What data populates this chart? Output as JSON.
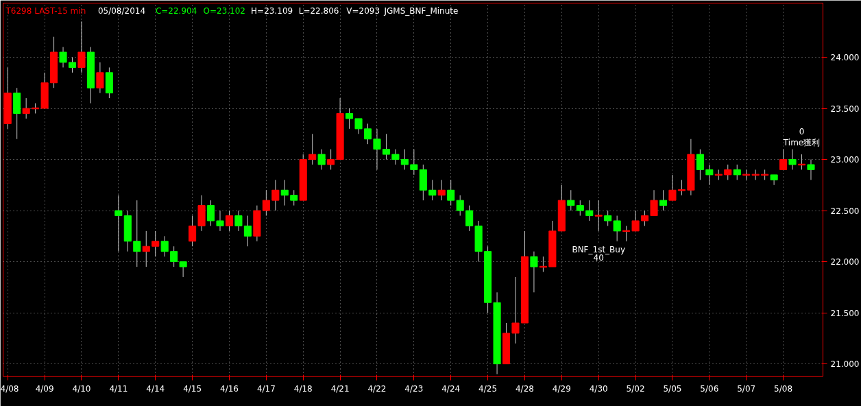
{
  "chart_data": {
    "type": "candlestick",
    "title": "T6298 LAST-15 min",
    "annotations": [
      "05/08/2014",
      "C=22.904",
      "O=23.102",
      "H=23.109",
      "L=22.806",
      "V=2093",
      "JGMS_BNF_Minute",
      "BNF_1st_Buy",
      "40",
      "0",
      "Time獲利"
    ],
    "categories": [
      "4/08",
      null,
      null,
      null,
      "4/09",
      null,
      null,
      null,
      "4/10",
      null,
      null,
      null,
      "4/11",
      null,
      null,
      null,
      "4/14",
      null,
      null,
      null,
      "4/15",
      null,
      null,
      null,
      "4/16",
      null,
      null,
      null,
      "4/17",
      null,
      null,
      null,
      "4/18",
      null,
      null,
      null,
      "4/21",
      null,
      null,
      null,
      "4/22",
      null,
      null,
      null,
      "4/23",
      null,
      null,
      null,
      "4/24",
      null,
      null,
      null,
      "4/25",
      null,
      null,
      null,
      "4/28",
      null,
      null,
      null,
      "4/29",
      null,
      null,
      null,
      "4/30",
      null,
      null,
      null,
      "5/02",
      null,
      null,
      null,
      "5/05",
      null,
      null,
      null,
      "5/06",
      null,
      null,
      null,
      "5/07",
      null,
      null,
      null,
      "5/08",
      null,
      null,
      null
    ],
    "ohlc": [
      [
        23350,
        23900,
        23300,
        23650
      ],
      [
        23650,
        23700,
        23200,
        23450
      ],
      [
        23450,
        23600,
        23400,
        23500
      ],
      [
        23500,
        23550,
        23450,
        23500
      ],
      [
        23500,
        23850,
        23500,
        23750
      ],
      [
        23750,
        24200,
        23700,
        24050
      ],
      [
        24050,
        24100,
        23900,
        23950
      ],
      [
        23950,
        24000,
        23850,
        23900
      ],
      [
        23900,
        24350,
        23850,
        24050
      ],
      [
        24050,
        24100,
        23550,
        23700
      ],
      [
        23700,
        23950,
        23650,
        23850
      ],
      [
        23850,
        23900,
        23600,
        23650
      ],
      [
        22500,
        22650,
        22100,
        22450
      ],
      [
        22450,
        22500,
        22100,
        22200
      ],
      [
        22200,
        22600,
        21950,
        22100
      ],
      [
        22100,
        22300,
        21950,
        22150
      ],
      [
        22150,
        22300,
        22050,
        22200
      ],
      [
        22200,
        22250,
        22050,
        22100
      ],
      [
        22100,
        22150,
        21950,
        22000
      ],
      [
        22000,
        22000,
        21850,
        21950
      ],
      [
        22200,
        22450,
        22150,
        22350
      ],
      [
        22350,
        22650,
        22300,
        22550
      ],
      [
        22550,
        22600,
        22350,
        22400
      ],
      [
        22400,
        22500,
        22300,
        22350
      ],
      [
        22350,
        22500,
        22300,
        22450
      ],
      [
        22450,
        22500,
        22300,
        22350
      ],
      [
        22350,
        22450,
        22150,
        22250
      ],
      [
        22250,
        22550,
        22200,
        22500
      ],
      [
        22500,
        22700,
        22450,
        22600
      ],
      [
        22600,
        22800,
        22500,
        22700
      ],
      [
        22700,
        22800,
        22550,
        22650
      ],
      [
        22650,
        22700,
        22550,
        22600
      ],
      [
        22600,
        23050,
        22600,
        23000
      ],
      [
        23000,
        23250,
        22950,
        23050
      ],
      [
        23050,
        23100,
        22900,
        22950
      ],
      [
        22950,
        23100,
        22900,
        23000
      ],
      [
        23000,
        23600,
        23000,
        23450
      ],
      [
        23450,
        23500,
        23300,
        23400
      ],
      [
        23400,
        23400,
        23250,
        23300
      ],
      [
        23300,
        23350,
        23150,
        23200
      ],
      [
        23200,
        23300,
        22900,
        23100
      ],
      [
        23100,
        23250,
        23000,
        23050
      ],
      [
        23050,
        23100,
        22950,
        23000
      ],
      [
        23000,
        23100,
        22900,
        22950
      ],
      [
        22950,
        23100,
        22850,
        22900
      ],
      [
        22900,
        22950,
        22600,
        22700
      ],
      [
        22700,
        22800,
        22600,
        22650
      ],
      [
        22650,
        22800,
        22600,
        22700
      ],
      [
        22700,
        22800,
        22550,
        22600
      ],
      [
        22600,
        22650,
        22450,
        22500
      ],
      [
        22500,
        22550,
        22300,
        22350
      ],
      [
        22350,
        22400,
        22000,
        22100
      ],
      [
        22100,
        22150,
        21500,
        21600
      ],
      [
        21600,
        21700,
        20900,
        21000
      ],
      [
        21000,
        21400,
        21000,
        21300
      ],
      [
        21300,
        21850,
        21200,
        21400
      ],
      [
        21400,
        22300,
        21400,
        22050
      ],
      [
        22050,
        22100,
        21700,
        21950
      ],
      [
        21950,
        22050,
        21900,
        21950
      ],
      [
        21950,
        22400,
        21950,
        22300
      ],
      [
        22300,
        22750,
        22300,
        22600
      ],
      [
        22600,
        22700,
        22500,
        22550
      ],
      [
        22550,
        22600,
        22450,
        22500
      ],
      [
        22500,
        22600,
        22400,
        22450
      ],
      [
        22450,
        22600,
        22300,
        22450
      ],
      [
        22450,
        22500,
        22350,
        22400
      ],
      [
        22400,
        22450,
        22200,
        22300
      ],
      [
        22300,
        22350,
        22200,
        22300
      ],
      [
        22300,
        22500,
        22300,
        22400
      ],
      [
        22400,
        22500,
        22350,
        22450
      ],
      [
        22450,
        22700,
        22450,
        22600
      ],
      [
        22600,
        22700,
        22500,
        22550
      ],
      [
        22600,
        22850,
        22600,
        22700
      ],
      [
        22700,
        22800,
        22650,
        22700
      ],
      [
        22700,
        23200,
        22650,
        23050
      ],
      [
        23050,
        23100,
        22800,
        22900
      ],
      [
        22900,
        22950,
        22750,
        22850
      ],
      [
        22850,
        22900,
        22800,
        22850
      ],
      [
        22850,
        22950,
        22800,
        22900
      ],
      [
        22900,
        22950,
        22800,
        22850
      ],
      [
        22850,
        22900,
        22800,
        22850
      ],
      [
        22850,
        22900,
        22800,
        22850
      ],
      [
        22850,
        22900,
        22800,
        22850
      ],
      [
        22850,
        22850,
        22750,
        22800
      ],
      [
        22900,
        23100,
        22900,
        23000
      ],
      [
        23000,
        23100,
        22900,
        22950
      ],
      [
        22950,
        23050,
        22900,
        22950
      ],
      [
        22950,
        23000,
        22800,
        22900
      ]
    ],
    "colors": [
      "#ff0000",
      "#00ff00",
      "#ff0000",
      "#ff0000",
      "#ff0000",
      "#ff0000",
      "#00ff00",
      "#00ff00",
      "#ff0000",
      "#00ff00",
      "#ff0000",
      "#00ff00",
      "#00ff00",
      "#00ff00",
      "#00ff00",
      "#ff0000",
      "#ff0000",
      "#00ff00",
      "#00ff00",
      "#00ff00",
      "#ff0000",
      "#ff0000",
      "#00ff00",
      "#00ff00",
      "#ff0000",
      "#00ff00",
      "#00ff00",
      "#ff0000",
      "#ff0000",
      "#ff0000",
      "#00ff00",
      "#00ff00",
      "#ff0000",
      "#ff0000",
      "#00ff00",
      "#ff0000",
      "#ff0000",
      "#00ff00",
      "#00ff00",
      "#00ff00",
      "#00ff00",
      "#00ff00",
      "#00ff00",
      "#00ff00",
      "#00ff00",
      "#00ff00",
      "#00ff00",
      "#ff0000",
      "#00ff00",
      "#00ff00",
      "#00ff00",
      "#00ff00",
      "#00ff00",
      "#00ff00",
      "#ff0000",
      "#ff0000",
      "#ff0000",
      "#00ff00",
      "#ff0000",
      "#ff0000",
      "#ff0000",
      "#00ff00",
      "#00ff00",
      "#00ff00",
      "#ff0000",
      "#00ff00",
      "#00ff00",
      "#ff0000",
      "#ff0000",
      "#ff0000",
      "#ff0000",
      "#00ff00",
      "#ff0000",
      "#ff0000",
      "#ff0000",
      "#00ff00",
      "#00ff00",
      "#ff0000",
      "#ff0000",
      "#00ff00",
      "#ff0000",
      "#ff0000",
      "#ff0000",
      "#00ff00",
      "#ff0000",
      "#00ff00",
      "#ff0000",
      "#00ff00"
    ],
    "ylim": [
      20880,
      24530
    ],
    "yticks": [
      {
        "value": 21000,
        "label": "21.000"
      },
      {
        "value": 21500,
        "label": "21.500"
      },
      {
        "value": 22000,
        "label": "22.000"
      },
      {
        "value": 22500,
        "label": "22.500"
      },
      {
        "value": 23000,
        "label": "23.000"
      },
      {
        "value": 23500,
        "label": "23.500"
      },
      {
        "value": 24000,
        "label": "24.000"
      }
    ],
    "grid": true
  }
}
